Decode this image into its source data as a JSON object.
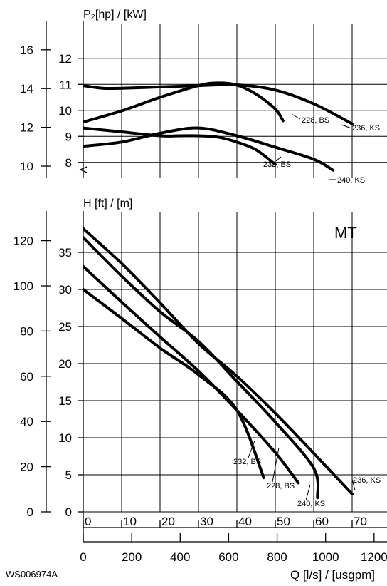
{
  "chart_data": [
    {
      "type": "line",
      "title": "P₂[hp] / [kW]",
      "x_axis": {
        "unit": "l/s",
        "range": [
          0,
          80
        ]
      },
      "y_axis_left": {
        "unit": "hp",
        "ticks": [
          "10",
          "12",
          "14",
          "16"
        ],
        "range": [
          9.4,
          17.2
        ]
      },
      "y_axis_right": {
        "unit": "kW",
        "ticks": [
          "8",
          "9",
          "10",
          "11",
          "12"
        ],
        "range": [
          7.0,
          12.8
        ]
      },
      "grid": true,
      "series": [
        {
          "name": "228, BS",
          "x": [
            0,
            10,
            20,
            30,
            35,
            40,
            45,
            50,
            52
          ],
          "y": [
            9.55,
            9.98,
            10.5,
            10.95,
            11.05,
            10.97,
            10.62,
            10.05,
            9.6
          ]
        },
        {
          "name": "236, KS",
          "x": [
            0,
            5,
            10,
            20,
            30,
            40,
            50,
            60,
            70
          ],
          "y": [
            10.95,
            10.85,
            10.85,
            10.9,
            10.95,
            10.98,
            10.78,
            10.25,
            9.48
          ]
        },
        {
          "name": "232, BS",
          "x": [
            0,
            10,
            20,
            25,
            30,
            35,
            40,
            45,
            50
          ],
          "y": [
            9.32,
            9.17,
            9.02,
            9.02,
            9.02,
            8.97,
            8.78,
            8.48,
            7.92
          ]
        },
        {
          "name": "240, KS",
          "x": [
            0,
            10,
            20,
            30,
            40,
            50,
            60,
            65
          ],
          "y": [
            8.62,
            8.78,
            9.12,
            9.32,
            9.02,
            8.58,
            8.12,
            7.7
          ]
        }
      ],
      "labels": [
        "228, BS",
        "236, KS",
        "232, BS",
        "240, KS"
      ]
    },
    {
      "type": "line",
      "title": "H [ft] / [m]",
      "x_axis": {
        "unit": "l/s",
        "range": [
          0,
          80
        ]
      },
      "y_axis_left": {
        "unit": "ft",
        "ticks": [
          "0",
          "20",
          "40",
          "60",
          "80",
          "100",
          "120"
        ],
        "range": [
          0,
          130
        ]
      },
      "y_axis_right": {
        "unit": "m",
        "ticks": [
          "0",
          "5",
          "10",
          "15",
          "20",
          "25",
          "30",
          "35"
        ],
        "range": [
          0,
          40
        ]
      },
      "grid": true,
      "inset_label": "MT",
      "series": [
        {
          "name": "236, KS",
          "x": [
            0,
            10,
            20,
            30,
            40,
            50,
            60,
            70
          ],
          "y": [
            38.2,
            33.5,
            28.2,
            22.7,
            18.3,
            13.3,
            7.9,
            2.4
          ]
        },
        {
          "name": "240, KS",
          "x": [
            0,
            10,
            20,
            30,
            40,
            50,
            60,
            61
          ],
          "y": [
            37.0,
            31.8,
            27.0,
            23.0,
            17.6,
            12.1,
            5.9,
            1.9
          ]
        },
        {
          "name": "228, BS",
          "x": [
            0,
            10,
            20,
            30,
            40,
            50,
            56
          ],
          "y": [
            33.1,
            28.3,
            23.6,
            19.0,
            13.7,
            8.0,
            3.9
          ]
        },
        {
          "name": "232, BS",
          "x": [
            0,
            10,
            20,
            30,
            40,
            47
          ],
          "y": [
            30.0,
            26.1,
            22.1,
            18.5,
            13.7,
            4.6
          ]
        }
      ],
      "labels": [
        "232, BS",
        "228, BS",
        "240, KS",
        "236, KS"
      ]
    }
  ],
  "x_axis_ls": {
    "ticks": [
      "0",
      "10",
      "20",
      "30",
      "40",
      "50",
      "60",
      "70"
    ]
  },
  "x_axis_usgpm": {
    "ticks": [
      "0",
      "200",
      "400",
      "600",
      "800",
      "1000",
      "1200"
    ]
  },
  "x_axis_title": "Q [l/s] / [usgpm]",
  "figure_id": "WS006974A"
}
